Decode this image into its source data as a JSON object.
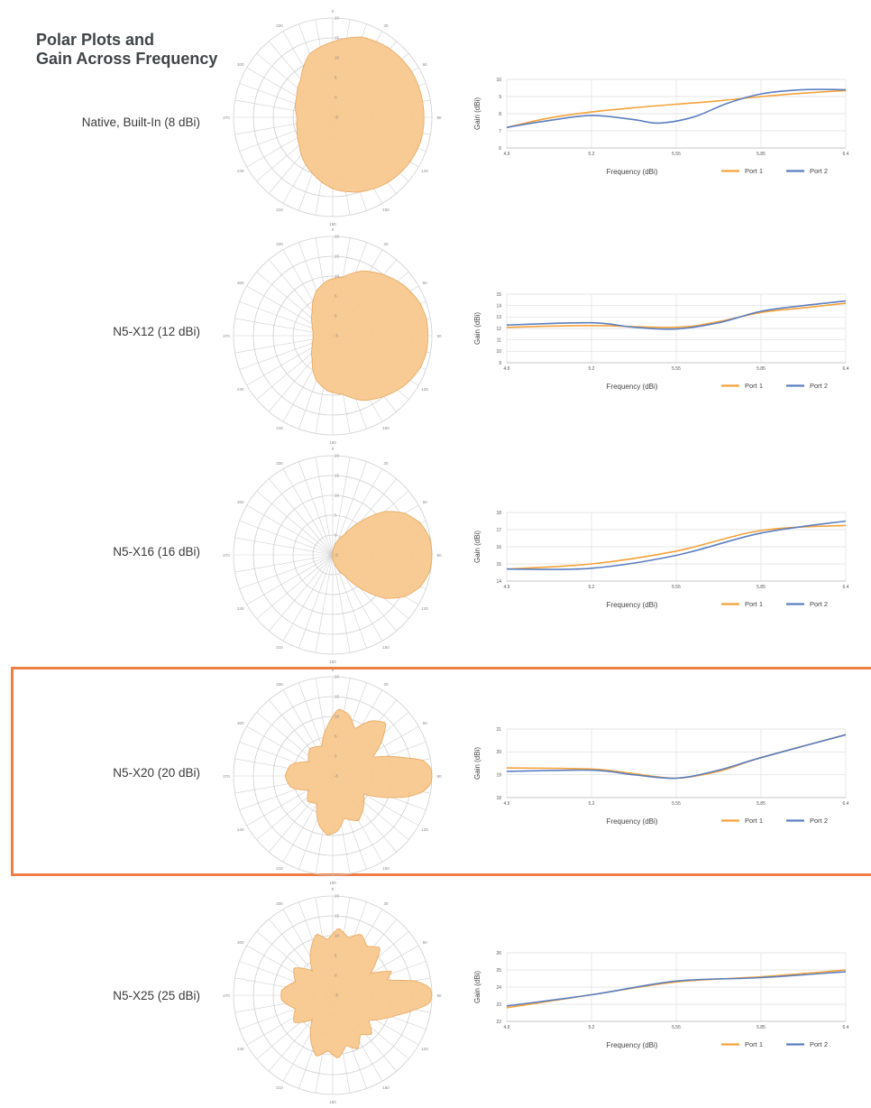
{
  "heading": {
    "line1": "Polar Plots and",
    "line2": "Gain Across Frequency"
  },
  "colors": {
    "port1": "#f5a23a",
    "port2": "#5b7fc0",
    "lobe_fill": "#f8c98f",
    "lobe_stroke": "#e7a860",
    "highlight": "#ee7e45",
    "grid": "#cfcfcf"
  },
  "polar_labels": {
    "angles": [
      "0",
      "30",
      "60",
      "90",
      "120",
      "150",
      "180",
      "210",
      "240",
      "270",
      "300",
      "330"
    ],
    "radials": [
      "-5",
      "0",
      "5",
      "10",
      "15",
      "20"
    ]
  },
  "chart_data": [
    {
      "type": "line",
      "label": "Native, Built-In (8 dBi)",
      "x_ticks": [
        "4.9",
        "5.2",
        "5.55",
        "5.85",
        "6.4"
      ],
      "xlabel": "Frequency (dBi)",
      "ylabel": "Gain (dBi)",
      "y_ticks": [
        "6",
        "7",
        "8",
        "9",
        "10"
      ],
      "ylim": [
        6,
        10
      ],
      "grid": true,
      "legend": "bottom-right",
      "series": [
        {
          "name": "Port 1",
          "values": [
            [
              0,
              7.2
            ],
            [
              0.5,
              7.75
            ],
            [
              1,
              8.1
            ],
            [
              1.5,
              8.35
            ],
            [
              2,
              8.55
            ],
            [
              2.5,
              8.75
            ],
            [
              3,
              9.0
            ],
            [
              3.5,
              9.2
            ],
            [
              4,
              9.35
            ]
          ]
        },
        {
          "name": "Port 2",
          "values": [
            [
              0,
              7.2
            ],
            [
              0.5,
              7.6
            ],
            [
              1,
              7.9
            ],
            [
              1.5,
              7.65
            ],
            [
              1.8,
              7.45
            ],
            [
              2.2,
              7.8
            ],
            [
              2.6,
              8.6
            ],
            [
              3,
              9.15
            ],
            [
              3.5,
              9.4
            ],
            [
              4,
              9.4
            ]
          ]
        }
      ]
    },
    {
      "type": "line",
      "label": "N5-X12 (12 dBi)",
      "x_ticks": [
        "4.9",
        "5.2",
        "5.55",
        "5.85",
        "6.4"
      ],
      "xlabel": "Frequency (dBi)",
      "ylabel": "Gain (dBi)",
      "y_ticks": [
        "9",
        "10",
        "11",
        "12",
        "13",
        "14",
        "15"
      ],
      "ylim": [
        9,
        15
      ],
      "grid": true,
      "legend": "bottom-right",
      "series": [
        {
          "name": "Port 1",
          "values": [
            [
              0,
              12.1
            ],
            [
              1,
              12.25
            ],
            [
              2,
              12.1
            ],
            [
              2.5,
              12.6
            ],
            [
              3,
              13.4
            ],
            [
              3.5,
              13.8
            ],
            [
              4,
              14.2
            ]
          ]
        },
        {
          "name": "Port 2",
          "values": [
            [
              0,
              12.3
            ],
            [
              1,
              12.5
            ],
            [
              1.5,
              12.1
            ],
            [
              2,
              11.95
            ],
            [
              2.5,
              12.5
            ],
            [
              3,
              13.5
            ],
            [
              3.5,
              14.0
            ],
            [
              4,
              14.4
            ]
          ]
        }
      ]
    },
    {
      "type": "line",
      "label": "N5-X16 (16 dBi)",
      "x_ticks": [
        "4.9",
        "5.2",
        "5.55",
        "5.85",
        "6.4"
      ],
      "xlabel": "Frequency (dBi)",
      "ylabel": "Gain (dBi)",
      "y_ticks": [
        "14",
        "15",
        "16",
        "17",
        "18"
      ],
      "ylim": [
        14,
        18
      ],
      "grid": true,
      "legend": "bottom-right",
      "series": [
        {
          "name": "Port 1",
          "values": [
            [
              0,
              14.7
            ],
            [
              1,
              15.0
            ],
            [
              2,
              15.75
            ],
            [
              3,
              16.95
            ],
            [
              4,
              17.25
            ]
          ]
        },
        {
          "name": "Port 2",
          "values": [
            [
              0,
              14.7
            ],
            [
              1,
              14.75
            ],
            [
              2,
              15.5
            ],
            [
              3,
              16.8
            ],
            [
              4,
              17.5
            ]
          ]
        }
      ]
    },
    {
      "type": "line",
      "label": "N5-X20 (20 dBi)",
      "x_ticks": [
        "4.9",
        "5.2",
        "5.55",
        "5.85",
        "6.4"
      ],
      "xlabel": "Frequency (dBi)",
      "ylabel": "Gain (dBi)",
      "y_ticks": [
        "18",
        "19",
        "20",
        "21"
      ],
      "ylim": [
        18,
        21
      ],
      "grid": true,
      "legend": "bottom-right",
      "series": [
        {
          "name": "Port 1",
          "values": [
            [
              0,
              19.3
            ],
            [
              1,
              19.25
            ],
            [
              1.5,
              19.05
            ],
            [
              2,
              18.85
            ],
            [
              2.5,
              19.15
            ],
            [
              3,
              19.75
            ],
            [
              4,
              20.75
            ]
          ]
        },
        {
          "name": "Port 2",
          "values": [
            [
              0,
              19.15
            ],
            [
              1,
              19.2
            ],
            [
              1.5,
              19.0
            ],
            [
              2,
              18.85
            ],
            [
              2.5,
              19.2
            ],
            [
              3,
              19.75
            ],
            [
              4,
              20.75
            ]
          ]
        }
      ]
    },
    {
      "type": "line",
      "label": "N5-X25 (25 dBi)",
      "x_ticks": [
        "4.9",
        "5.2",
        "5.55",
        "5.85",
        "6.4"
      ],
      "xlabel": "Frequency (dBi)",
      "ylabel": "Gain (dBi)",
      "y_ticks": [
        "22",
        "23",
        "24",
        "25",
        "26"
      ],
      "ylim": [
        22,
        26
      ],
      "grid": true,
      "legend": "bottom-right",
      "series": [
        {
          "name": "Port 1",
          "values": [
            [
              0,
              22.8
            ],
            [
              1,
              23.55
            ],
            [
              2,
              24.3
            ],
            [
              3,
              24.6
            ],
            [
              4,
              25.0
            ]
          ]
        },
        {
          "name": "Port 2",
          "values": [
            [
              0,
              22.9
            ],
            [
              1,
              23.55
            ],
            [
              2,
              24.35
            ],
            [
              3,
              24.55
            ],
            [
              4,
              24.9
            ]
          ]
        }
      ]
    }
  ],
  "polar_patterns": [
    {
      "pattern": [
        [
          0,
          18
        ],
        [
          15,
          18
        ],
        [
          30,
          18
        ],
        [
          50,
          17.5
        ],
        [
          70,
          16.5
        ],
        [
          90,
          14
        ],
        [
          110,
          12
        ],
        [
          130,
          7.5
        ],
        [
          150,
          5.5
        ],
        [
          170,
          4.5
        ],
        [
          180,
          4
        ],
        [
          200,
          4.5
        ],
        [
          220,
          6
        ],
        [
          250,
          10
        ],
        [
          270,
          13
        ],
        [
          290,
          15
        ],
        [
          310,
          16.5
        ],
        [
          330,
          17.5
        ],
        [
          345,
          18
        ]
      ]
    },
    {
      "pattern": [
        [
          0,
          19
        ],
        [
          10,
          19
        ],
        [
          20,
          18.5
        ],
        [
          35,
          17
        ],
        [
          50,
          15
        ],
        [
          65,
          13
        ],
        [
          80,
          10
        ],
        [
          95,
          9
        ],
        [
          110,
          7
        ],
        [
          130,
          3
        ],
        [
          150,
          1
        ],
        [
          170,
          0
        ],
        [
          190,
          0
        ],
        [
          210,
          1
        ],
        [
          230,
          3
        ],
        [
          250,
          7
        ],
        [
          265,
          9
        ],
        [
          280,
          10
        ],
        [
          295,
          13
        ],
        [
          310,
          15
        ],
        [
          325,
          17
        ],
        [
          340,
          18.5
        ],
        [
          350,
          19
        ]
      ]
    },
    {
      "pattern": [
        [
          0,
          20
        ],
        [
          10,
          19.8
        ],
        [
          20,
          18.5
        ],
        [
          30,
          16
        ],
        [
          40,
          12
        ],
        [
          50,
          6
        ],
        [
          60,
          1
        ],
        [
          80,
          -3
        ],
        [
          100,
          -5
        ],
        [
          180,
          -5
        ],
        [
          260,
          -5
        ],
        [
          280,
          -3
        ],
        [
          300,
          1
        ],
        [
          310,
          6
        ],
        [
          320,
          12
        ],
        [
          330,
          16
        ],
        [
          340,
          18.5
        ],
        [
          350,
          19.8
        ]
      ]
    },
    {
      "pattern": [
        [
          0,
          20
        ],
        [
          5,
          19.8
        ],
        [
          10,
          18
        ],
        [
          15,
          13
        ],
        [
          25,
          6
        ],
        [
          35,
          10
        ],
        [
          45,
          14
        ],
        [
          55,
          12
        ],
        [
          65,
          8
        ],
        [
          75,
          11
        ],
        [
          85,
          12
        ],
        [
          95,
          8
        ],
        [
          110,
          3
        ],
        [
          130,
          4
        ],
        [
          150,
          2
        ],
        [
          165,
          6
        ],
        [
          180,
          7
        ],
        [
          195,
          6
        ],
        [
          210,
          2
        ],
        [
          225,
          4
        ],
        [
          240,
          3
        ],
        [
          255,
          8
        ],
        [
          265,
          10
        ],
        [
          275,
          9
        ],
        [
          285,
          6
        ],
        [
          300,
          8
        ],
        [
          315,
          6
        ],
        [
          330,
          4
        ],
        [
          340,
          11
        ],
        [
          345,
          15
        ],
        [
          350,
          18
        ],
        [
          355,
          19.8
        ]
      ]
    },
    {
      "pattern": [
        [
          0,
          20
        ],
        [
          5,
          19.5
        ],
        [
          10,
          16
        ],
        [
          15,
          9
        ],
        [
          22,
          11
        ],
        [
          30,
          6
        ],
        [
          38,
          9
        ],
        [
          45,
          12
        ],
        [
          55,
          10
        ],
        [
          65,
          12
        ],
        [
          75,
          10
        ],
        [
          85,
          12
        ],
        [
          95,
          9
        ],
        [
          105,
          11
        ],
        [
          115,
          8
        ],
        [
          130,
          3
        ],
        [
          145,
          7
        ],
        [
          160,
          5
        ],
        [
          175,
          8
        ],
        [
          185,
          8
        ],
        [
          200,
          5
        ],
        [
          215,
          7
        ],
        [
          230,
          3
        ],
        [
          245,
          8
        ],
        [
          255,
          11
        ],
        [
          265,
          9
        ],
        [
          275,
          11
        ],
        [
          285,
          8
        ],
        [
          295,
          10
        ],
        [
          305,
          7
        ],
        [
          315,
          9
        ],
        [
          325,
          6
        ],
        [
          335,
          9
        ],
        [
          343,
          12
        ],
        [
          350,
          16
        ],
        [
          355,
          19.5
        ]
      ]
    }
  ]
}
